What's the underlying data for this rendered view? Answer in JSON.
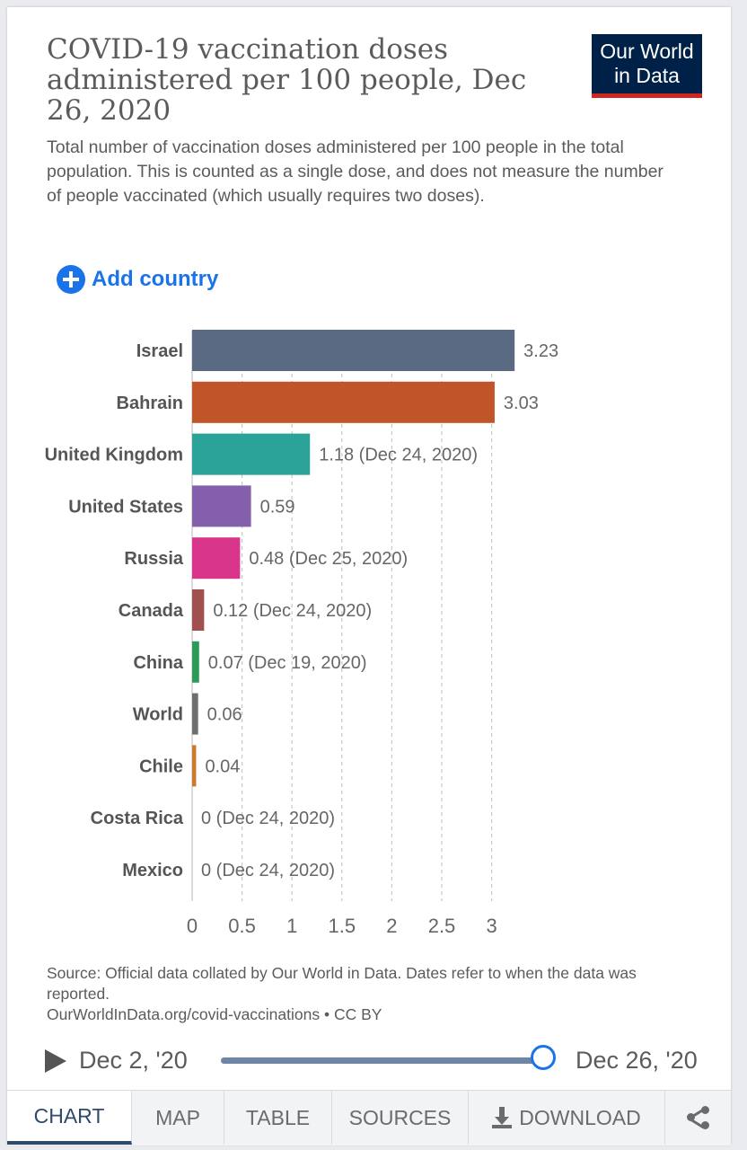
{
  "header": {
    "title": "COVID-19 vaccination doses administered per 100 people, Dec 26, 2020",
    "subtitle": "Total number of vaccination doses administered per 100 people in the total population. This is counted as a single dose, and does not measure the number of people vaccinated (which usually requires two doses).",
    "logo_line1": "Our World",
    "logo_line2": "in Data"
  },
  "controls": {
    "add_country_label": "Add country"
  },
  "chart_data": {
    "type": "bar",
    "orientation": "horizontal",
    "categories": [
      "Israel",
      "Bahrain",
      "United Kingdom",
      "United States",
      "Russia",
      "Canada",
      "China",
      "World",
      "Chile",
      "Costa Rica",
      "Mexico"
    ],
    "values": [
      3.23,
      3.03,
      1.18,
      0.59,
      0.48,
      0.12,
      0.07,
      0.06,
      0.04,
      0,
      0
    ],
    "data_labels": [
      "3.23",
      "3.03",
      "1.18 (Dec 24, 2020)",
      "0.59",
      "0.48 (Dec 25, 2020)",
      "0.12 (Dec 24, 2020)",
      "0.07 (Dec 19, 2020)",
      "0.06",
      "0.04",
      "0 (Dec 24, 2020)",
      "0 (Dec 24, 2020)"
    ],
    "colors": [
      "#5a6a82",
      "#c0552a",
      "#2ca398",
      "#8460ac",
      "#d9358a",
      "#a15050",
      "#2e9a57",
      "#6f6f6f",
      "#cc7a2e",
      "#4a7fbf",
      "#8a5a3c"
    ],
    "xticks": [
      0,
      0.5,
      1,
      1.5,
      2,
      2.5,
      3
    ],
    "xtick_labels": [
      "0",
      "0.5",
      "1",
      "1.5",
      "2",
      "2.5",
      "3"
    ],
    "xlim": [
      0,
      3.23
    ],
    "grid": "vertical dashed",
    "title": "",
    "xlabel": "",
    "ylabel": ""
  },
  "source": {
    "text": "Source: Official data collated by Our World in Data. Dates refer to when the data was reported.",
    "link": "OurWorldInData.org/covid-vaccinations • CC BY"
  },
  "timeline": {
    "start_label": "Dec 2, '20",
    "end_label": "Dec 26, '20",
    "position": 1.0
  },
  "tabs": [
    {
      "label": "CHART",
      "active": true
    },
    {
      "label": "MAP",
      "active": false
    },
    {
      "label": "TABLE",
      "active": false
    },
    {
      "label": "SOURCES",
      "active": false
    },
    {
      "label": "DOWNLOAD",
      "active": false
    }
  ],
  "icons": {
    "add": "plus-circle-icon",
    "play": "play-icon",
    "download": "download-icon",
    "share": "share-icon"
  }
}
